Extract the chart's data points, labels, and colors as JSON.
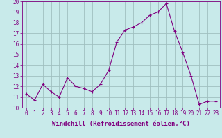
{
  "x": [
    0,
    1,
    2,
    3,
    4,
    5,
    6,
    7,
    8,
    9,
    10,
    11,
    12,
    13,
    14,
    15,
    16,
    17,
    18,
    19,
    20,
    21,
    22,
    23
  ],
  "y": [
    11.3,
    10.7,
    12.2,
    11.5,
    11.0,
    12.8,
    12.0,
    11.8,
    11.5,
    12.2,
    13.5,
    16.2,
    17.3,
    17.6,
    18.0,
    18.7,
    19.0,
    19.8,
    17.2,
    15.2,
    13.0,
    10.3,
    10.6,
    10.6
  ],
  "line_color": "#800080",
  "marker": "P",
  "marker_size": 2.5,
  "bg_color": "#c8eaea",
  "grid_color": "#a0c0c0",
  "xlabel": "Windchill (Refroidissement éolien,°C)",
  "xlim": [
    -0.5,
    23.5
  ],
  "ylim": [
    10,
    20
  ],
  "yticks": [
    10,
    11,
    12,
    13,
    14,
    15,
    16,
    17,
    18,
    19,
    20
  ],
  "xticks": [
    0,
    1,
    2,
    3,
    4,
    5,
    6,
    7,
    8,
    9,
    10,
    11,
    12,
    13,
    14,
    15,
    16,
    17,
    18,
    19,
    20,
    21,
    22,
    23
  ],
  "tick_fontsize": 5.5,
  "xlabel_fontsize": 6.5,
  "tick_color": "#800080",
  "label_color": "#800080",
  "spine_color": "#800080"
}
